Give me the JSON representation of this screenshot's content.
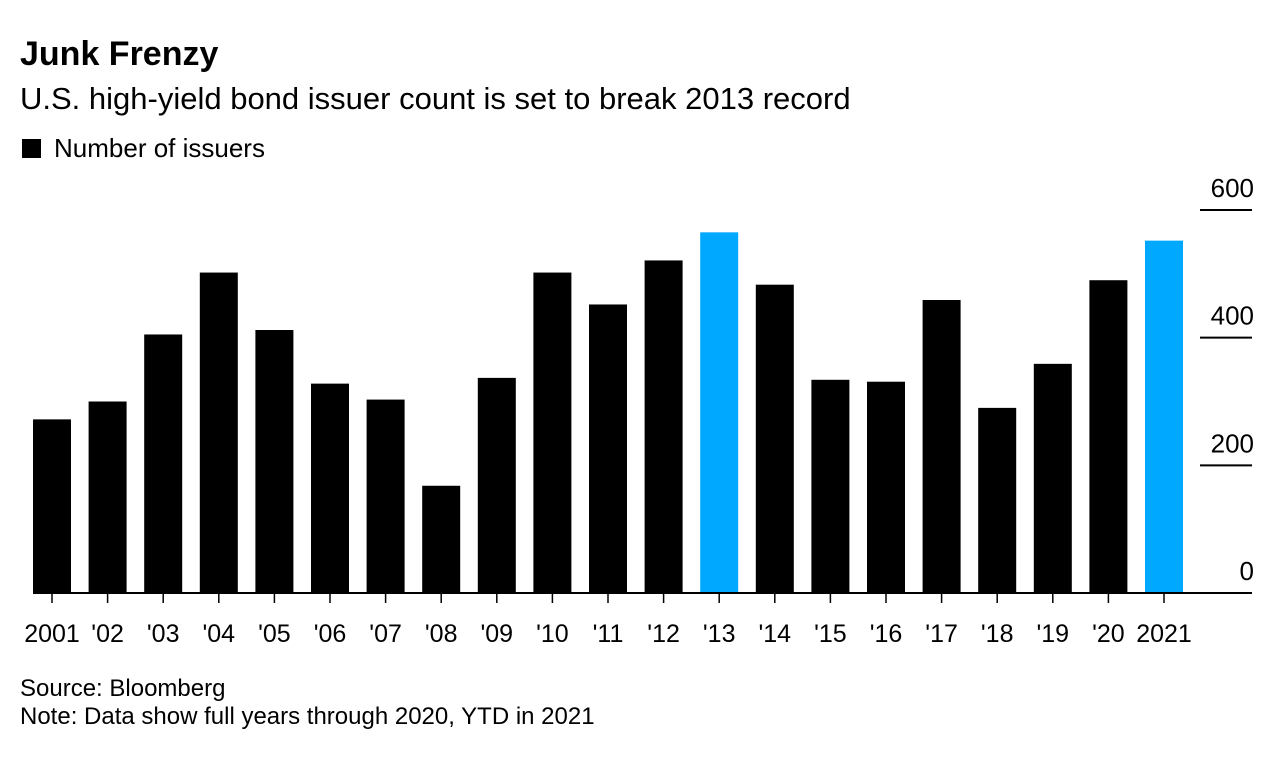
{
  "header": {
    "title": "Junk Frenzy",
    "subtitle": "U.S. high-yield bond issuer count is set to break 2013 record"
  },
  "legend": {
    "label": "Number of issuers",
    "color": "#000000"
  },
  "footer": {
    "source": "Source: Bloomberg",
    "note": "Note: Data show full years through 2020, YTD in 2021"
  },
  "colors": {
    "default_bar": "#000000",
    "highlight_bar": "#00a8ff"
  },
  "chart_data": {
    "type": "bar",
    "title": "Junk Frenzy",
    "subtitle": "U.S. high-yield bond issuer count is set to break 2013 record",
    "categories": [
      "2001",
      "'02",
      "'03",
      "'04",
      "'05",
      "'06",
      "'07",
      "'08",
      "'09",
      "'10",
      "'11",
      "'12",
      "'13",
      "'14",
      "'15",
      "'16",
      "'17",
      "'18",
      "'19",
      "'20",
      "2021"
    ],
    "series": [
      {
        "name": "Number of issuers",
        "values": [
          272,
          300,
          405,
          502,
          412,
          328,
          303,
          168,
          337,
          502,
          452,
          521,
          565,
          483,
          334,
          331,
          459,
          290,
          359,
          490,
          552
        ]
      }
    ],
    "highlighted": [
      "'13",
      "2021"
    ],
    "ylim": [
      0,
      600
    ],
    "yticks": [
      0,
      200,
      400,
      600
    ],
    "ytick_labels": [
      "0",
      "200",
      "400",
      "600"
    ],
    "y_axis_position": "right",
    "grid": false,
    "legend_position": "top-left"
  }
}
